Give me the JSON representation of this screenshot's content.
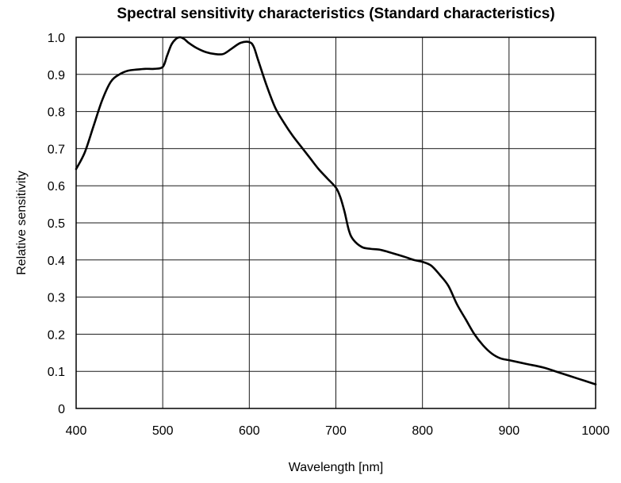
{
  "chart_data": {
    "type": "line",
    "title": "Spectral sensitivity characteristics (Standard characteristics)",
    "xlabel": "Wavelength [nm]",
    "ylabel": "Relative sensitivity",
    "xlim": [
      400,
      1000
    ],
    "ylim": [
      0,
      1.0
    ],
    "x_ticks": [
      400,
      500,
      600,
      700,
      800,
      900,
      1000
    ],
    "x_tick_labels": [
      "400",
      "500",
      "600",
      "700",
      "800",
      "900",
      "1000"
    ],
    "y_ticks": [
      0,
      0.1,
      0.2,
      0.3,
      0.4,
      0.5,
      0.6,
      0.7,
      0.8,
      0.9,
      1.0
    ],
    "y_tick_labels": [
      "0",
      "0.1",
      "0.2",
      "0.3",
      "0.4",
      "0.5",
      "0.6",
      "0.7",
      "0.8",
      "0.9",
      "1.0"
    ],
    "grid": true,
    "line_color": "#000000",
    "series": [
      {
        "x": [
          400,
          410,
          420,
          430,
          440,
          450,
          460,
          470,
          480,
          490,
          500,
          505,
          510,
          515,
          520,
          525,
          530,
          540,
          550,
          560,
          570,
          580,
          590,
          600,
          605,
          610,
          620,
          630,
          640,
          650,
          660,
          670,
          680,
          690,
          700,
          705,
          710,
          715,
          720,
          730,
          740,
          750,
          760,
          770,
          780,
          790,
          800,
          810,
          820,
          830,
          840,
          850,
          860,
          870,
          880,
          890,
          900,
          920,
          940,
          960,
          980,
          1000
        ],
        "y": [
          0.645,
          0.69,
          0.76,
          0.83,
          0.88,
          0.9,
          0.91,
          0.913,
          0.915,
          0.915,
          0.92,
          0.95,
          0.98,
          0.995,
          1.0,
          0.995,
          0.985,
          0.97,
          0.96,
          0.955,
          0.955,
          0.97,
          0.985,
          0.987,
          0.975,
          0.94,
          0.87,
          0.81,
          0.77,
          0.735,
          0.705,
          0.675,
          0.645,
          0.62,
          0.595,
          0.57,
          0.53,
          0.48,
          0.455,
          0.435,
          0.43,
          0.428,
          0.422,
          0.415,
          0.408,
          0.4,
          0.395,
          0.385,
          0.36,
          0.33,
          0.28,
          0.24,
          0.2,
          0.17,
          0.148,
          0.135,
          0.13,
          0.12,
          0.11,
          0.095,
          0.08,
          0.065
        ]
      }
    ]
  }
}
